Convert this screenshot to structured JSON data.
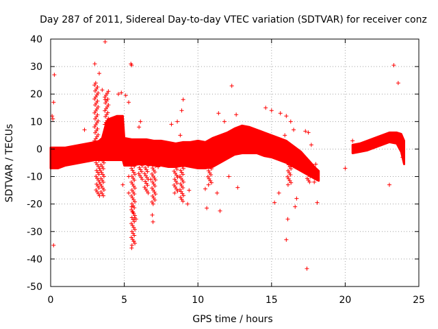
{
  "chart_data": {
    "type": "scatter",
    "title": "Day 287 of 2011, Sidereal Day-to-day VTEC variation (SDTVAR) for receiver conz",
    "xlabel": "GPS time / hours",
    "ylabel": "SDTVAR / TECUs",
    "xlim": [
      0,
      25
    ],
    "ylim": [
      -50,
      40
    ],
    "xticks": [
      0,
      5,
      10,
      15,
      20,
      25
    ],
    "yticks": [
      -50,
      -40,
      -30,
      -20,
      -10,
      0,
      10,
      20,
      30,
      40
    ],
    "grid": true,
    "marker": "+",
    "series_color": "#ff0000",
    "band": {
      "hours": [
        0.0,
        0.5,
        1.0,
        1.5,
        2.0,
        2.5,
        3.0,
        3.3,
        3.5,
        3.8,
        4.0,
        4.5,
        4.9,
        5.0,
        5.5,
        6.0,
        6.5,
        7.0,
        7.5,
        8.0,
        8.5,
        9.0,
        9.5,
        10.0,
        10.5,
        11.0,
        11.5,
        12.0,
        12.5,
        13.0,
        13.5,
        14.0,
        14.5,
        15.0,
        15.5,
        16.0,
        16.5,
        17.0,
        17.5,
        18.0,
        18.2
      ],
      "upper": [
        0.5,
        0.5,
        0.5,
        1.0,
        1.5,
        2.0,
        2.5,
        3.0,
        4.0,
        10.0,
        11.0,
        12.0,
        12.0,
        4.0,
        3.5,
        3.5,
        3.5,
        3.0,
        3.0,
        2.5,
        2.0,
        2.5,
        2.5,
        3.0,
        2.5,
        4.0,
        5.0,
        6.0,
        7.5,
        8.5,
        8.0,
        7.0,
        6.0,
        5.0,
        4.0,
        3.0,
        1.0,
        -1.0,
        -4.0,
        -7.0,
        -8.0
      ],
      "lower": [
        -7.0,
        -7.0,
        -6.0,
        -5.5,
        -5.0,
        -4.5,
        -4.0,
        -4.0,
        -4.0,
        -4.0,
        -4.0,
        -4.0,
        -4.0,
        -6.0,
        -6.0,
        -5.5,
        -5.5,
        -6.0,
        -6.0,
        -6.5,
        -6.5,
        -6.0,
        -6.5,
        -7.0,
        -7.0,
        -6.5,
        -5.0,
        -3.5,
        -2.0,
        -1.5,
        -1.5,
        -1.5,
        -2.5,
        -3.0,
        -4.0,
        -5.0,
        -6.5,
        -8.0,
        -9.5,
        -11.0,
        -11.5
      ]
    },
    "band2": {
      "hours": [
        20.5,
        21.0,
        21.5,
        22.0,
        22.5,
        23.0,
        23.5,
        23.8,
        24.0
      ],
      "upper": [
        1.5,
        2.0,
        3.0,
        4.0,
        5.0,
        6.0,
        6.0,
        5.5,
        3.0
      ],
      "lower": [
        -1.5,
        -1.0,
        -0.5,
        0.5,
        1.5,
        2.5,
        2.0,
        -1.0,
        -5.5
      ]
    },
    "spikes": [
      {
        "x": 3.2,
        "y_from": 0,
        "y_to": -17
      },
      {
        "x": 3.5,
        "y_from": 2,
        "y_to": -17
      },
      {
        "x": 3.1,
        "y_from": 3,
        "y_to": 24
      },
      {
        "x": 3.8,
        "y_from": 4,
        "y_to": 21
      },
      {
        "x": 5.6,
        "y_from": -2,
        "y_to": -35
      },
      {
        "x": 6.1,
        "y_from": -4,
        "y_to": -11
      },
      {
        "x": 6.5,
        "y_from": -4,
        "y_to": -16
      },
      {
        "x": 7.0,
        "y_from": -4,
        "y_to": -20
      },
      {
        "x": 8.9,
        "y_from": -5,
        "y_to": -19
      },
      {
        "x": 8.5,
        "y_from": -3,
        "y_to": -16
      },
      {
        "x": 10.8,
        "y_from": -5,
        "y_to": -13
      },
      {
        "x": 16.2,
        "y_from": -5,
        "y_to": -13
      },
      {
        "x": 17.5,
        "y_from": -8,
        "y_to": -12
      }
    ],
    "outliers": [
      [
        0.1,
        12
      ],
      [
        0.2,
        17
      ],
      [
        0.25,
        27
      ],
      [
        0.2,
        -35
      ],
      [
        0.15,
        11
      ],
      [
        2.3,
        7
      ],
      [
        3.0,
        31
      ],
      [
        3.3,
        27.5
      ],
      [
        3.7,
        39
      ],
      [
        3.5,
        21.5
      ],
      [
        3.7,
        18
      ],
      [
        4.6,
        20
      ],
      [
        4.8,
        20.5
      ],
      [
        5.1,
        19.5
      ],
      [
        5.3,
        17
      ],
      [
        5.5,
        30.5
      ],
      [
        5.45,
        31
      ],
      [
        5.1,
        2
      ],
      [
        4.9,
        -13
      ],
      [
        5.3,
        -10
      ],
      [
        5.3,
        -16
      ],
      [
        5.5,
        -21
      ],
      [
        5.6,
        -23
      ],
      [
        5.7,
        -25
      ],
      [
        5.8,
        -25.5
      ],
      [
        5.65,
        -33.5
      ],
      [
        5.5,
        -36
      ],
      [
        6.1,
        10
      ],
      [
        6.0,
        8
      ],
      [
        6.9,
        -24
      ],
      [
        6.95,
        -26.5
      ],
      [
        6.8,
        -11
      ],
      [
        7.3,
        -6.5
      ],
      [
        8.2,
        9
      ],
      [
        8.6,
        10
      ],
      [
        8.8,
        5
      ],
      [
        8.9,
        14
      ],
      [
        9.0,
        18
      ],
      [
        9.3,
        -20
      ],
      [
        9.4,
        -15
      ],
      [
        10.5,
        -14.5
      ],
      [
        10.6,
        -21.5
      ],
      [
        11.3,
        -16
      ],
      [
        11.5,
        -22.5
      ],
      [
        11.4,
        13
      ],
      [
        11.8,
        10
      ],
      [
        12.1,
        -10
      ],
      [
        12.3,
        23
      ],
      [
        12.6,
        12.5
      ],
      [
        12.7,
        -14
      ],
      [
        14.6,
        15
      ],
      [
        15.0,
        14
      ],
      [
        15.2,
        -19.5
      ],
      [
        15.5,
        -16
      ],
      [
        15.6,
        13
      ],
      [
        15.9,
        5
      ],
      [
        16.0,
        -33
      ],
      [
        16.1,
        -25.5
      ],
      [
        16.0,
        12
      ],
      [
        16.3,
        10
      ],
      [
        16.5,
        7
      ],
      [
        16.6,
        -21
      ],
      [
        16.7,
        -18
      ],
      [
        17.3,
        6.5
      ],
      [
        17.5,
        6
      ],
      [
        17.4,
        -43.5
      ],
      [
        17.6,
        -7
      ],
      [
        17.7,
        1.5
      ],
      [
        18.0,
        -5.5
      ],
      [
        18.1,
        -19.5
      ],
      [
        17.9,
        -12
      ],
      [
        20.0,
        -7
      ],
      [
        20.5,
        3
      ],
      [
        23.0,
        -13
      ],
      [
        23.3,
        30.5
      ],
      [
        23.6,
        24
      ],
      [
        23.9,
        -3
      ]
    ]
  }
}
